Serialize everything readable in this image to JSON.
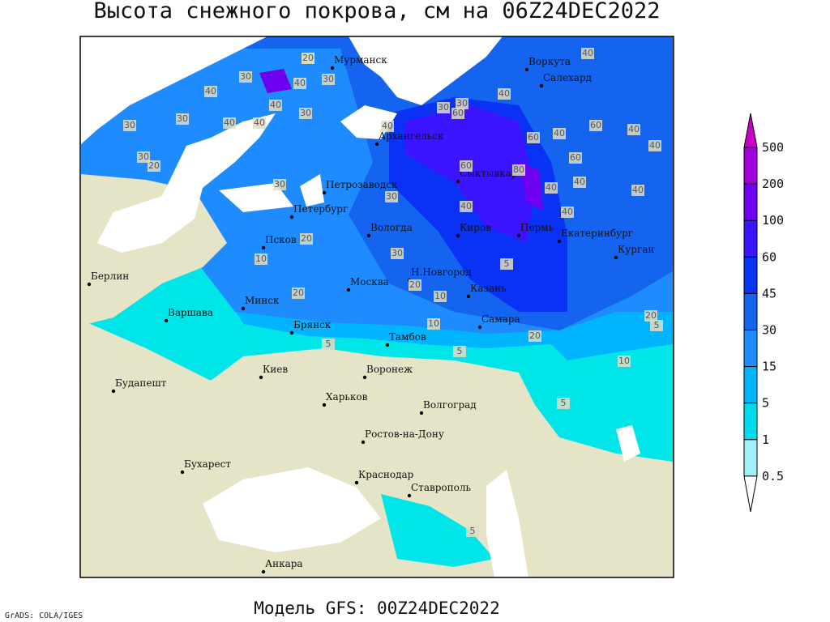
{
  "header": {
    "title": "Высота снежного покрова, см на 06Z24DEC2022"
  },
  "map": {
    "cities": [
      "Мурманск",
      "Воркута",
      "Салехард",
      "Архангельск",
      "Сыктывкар",
      "Петрозаводск",
      "Петербург",
      "Вологда",
      "Киров",
      "Пермь",
      "Екатеринбург",
      "Курган",
      "Псков",
      "Н.Новгород",
      "Казань",
      "Москва",
      "Минск",
      "Берлин",
      "Варшава",
      "Брянск",
      "Тамбов",
      "Самара",
      "Киев",
      "Воронеж",
      "Харьков",
      "Будапешт",
      "Волгоград",
      "Ростов-на-Дону",
      "Бухарест",
      "Краснодар",
      "Ставрополь",
      "Анкара"
    ],
    "contour_labels": [
      "20",
      "30",
      "40",
      "30",
      "40",
      "40",
      "30",
      "40",
      "30",
      "20",
      "30",
      "40",
      "30",
      "40",
      "60",
      "30",
      "40",
      "60",
      "40",
      "60",
      "60",
      "40",
      "40",
      "80",
      "40",
      "60",
      "40",
      "40",
      "40",
      "40",
      "40",
      "30",
      "20",
      "30",
      "10",
      "20",
      "20",
      "30",
      "30",
      "20",
      "10",
      "5",
      "10",
      "5",
      "20",
      "5",
      "20",
      "10",
      "5",
      "5",
      "5"
    ]
  },
  "legend": {
    "levels": [
      500,
      200,
      100,
      60,
      45,
      30,
      15,
      5,
      1,
      0.5
    ],
    "colors": [
      "#c800c8",
      "#a000dc",
      "#6e00f0",
      "#3c14ff",
      "#0a32f5",
      "#1464f0",
      "#1e8cff",
      "#00b4ff",
      "#00dcec",
      "#a0f0f5",
      "#ffffff"
    ]
  },
  "footer": {
    "credit": "GrADS: COLA/IGES",
    "model": "Модель GFS: 00Z24DEC2022"
  }
}
